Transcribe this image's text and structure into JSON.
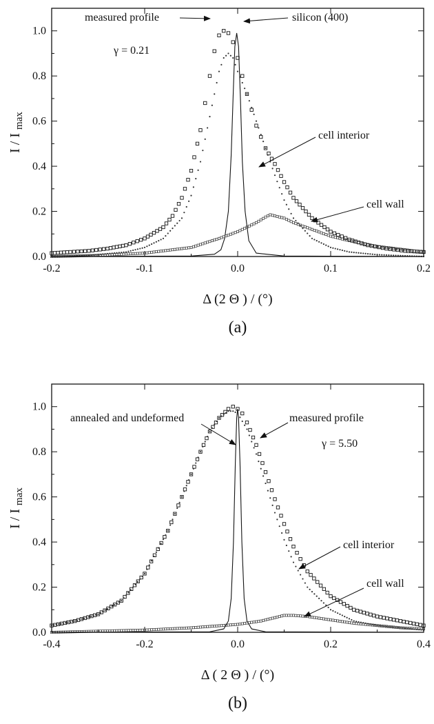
{
  "chart_data": [
    {
      "panel": "(a)",
      "type": "line",
      "xlabel": "Δ (2 Θ )  / (°)",
      "ylabel": "I / I max",
      "xlim": [
        -0.2,
        0.2
      ],
      "ylim": [
        0,
        1.1
      ],
      "xticks": [
        -0.2,
        -0.1,
        0.0,
        0.1,
        0.2
      ],
      "xtick_labels": [
        "-0.2",
        "-0.1",
        "0.0",
        "0.1",
        "0.2"
      ],
      "yticks": [
        0.0,
        0.2,
        0.4,
        0.6,
        0.8,
        1.0
      ],
      "ytick_labels": [
        "0.0",
        "0.2",
        "0.4",
        "0.6",
        "0.8",
        "1.0"
      ],
      "annotations": [
        {
          "text": "measured profile",
          "points_to": [
            -0.013,
            0.99
          ]
        },
        {
          "text": "silicon (400)",
          "points_to": [
            -0.003,
            0.98
          ]
        },
        {
          "text": "γ = 0.21"
        },
        {
          "text": "cell interior",
          "points_to": [
            0.015,
            0.52
          ]
        },
        {
          "text": "cell wall",
          "points_to": [
            0.06,
            0.15
          ]
        }
      ],
      "series": [
        {
          "style": "solid-line",
          "x": [
            -0.2,
            -0.05,
            -0.025,
            -0.018,
            -0.014,
            -0.01,
            -0.007,
            -0.005,
            -0.003,
            -0.001,
            0.001,
            0.003,
            0.005,
            0.008,
            0.012,
            0.02,
            0.05,
            0.2
          ],
          "y": [
            0.0,
            0.002,
            0.01,
            0.03,
            0.08,
            0.2,
            0.45,
            0.7,
            0.93,
            0.99,
            0.93,
            0.7,
            0.42,
            0.2,
            0.07,
            0.015,
            0.002,
            0.0
          ]
        },
        {
          "style": "open-squares",
          "x": [
            -0.2,
            -0.18,
            -0.16,
            -0.14,
            -0.12,
            -0.1,
            -0.08,
            -0.07,
            -0.06,
            -0.05,
            -0.04,
            -0.035,
            -0.03,
            -0.025,
            -0.02,
            -0.015,
            -0.01,
            -0.005,
            0.0,
            0.005,
            0.01,
            0.015,
            0.02,
            0.025,
            0.03,
            0.04,
            0.05,
            0.06,
            0.08,
            0.1,
            0.12,
            0.14,
            0.16,
            0.18,
            0.2
          ],
          "y": [
            0.015,
            0.02,
            0.025,
            0.035,
            0.05,
            0.08,
            0.13,
            0.18,
            0.26,
            0.38,
            0.56,
            0.68,
            0.8,
            0.91,
            0.98,
            1.0,
            0.99,
            0.95,
            0.88,
            0.8,
            0.72,
            0.65,
            0.58,
            0.53,
            0.48,
            0.41,
            0.33,
            0.26,
            0.17,
            0.11,
            0.075,
            0.05,
            0.035,
            0.025,
            0.02
          ]
        },
        {
          "style": "dotted",
          "x": [
            -0.2,
            -0.16,
            -0.12,
            -0.1,
            -0.08,
            -0.06,
            -0.05,
            -0.04,
            -0.03,
            -0.025,
            -0.02,
            -0.015,
            -0.01,
            -0.005,
            0.0,
            0.01,
            0.02,
            0.03,
            0.04,
            0.05,
            0.06,
            0.08,
            0.1,
            0.12,
            0.15,
            0.2
          ],
          "y": [
            0.0,
            0.005,
            0.02,
            0.04,
            0.08,
            0.17,
            0.27,
            0.42,
            0.62,
            0.72,
            0.82,
            0.88,
            0.9,
            0.88,
            0.82,
            0.72,
            0.6,
            0.48,
            0.36,
            0.25,
            0.17,
            0.08,
            0.04,
            0.02,
            0.008,
            0.0
          ]
        },
        {
          "style": "dotted-squares",
          "x": [
            -0.2,
            -0.15,
            -0.1,
            -0.05,
            -0.02,
            0.0,
            0.02,
            0.03,
            0.035,
            0.04,
            0.05,
            0.06,
            0.08,
            0.1,
            0.12,
            0.15,
            0.2
          ],
          "y": [
            0.0,
            0.005,
            0.015,
            0.04,
            0.08,
            0.11,
            0.15,
            0.175,
            0.185,
            0.18,
            0.17,
            0.15,
            0.12,
            0.09,
            0.07,
            0.045,
            0.02
          ]
        }
      ]
    },
    {
      "panel": "(b)",
      "type": "line",
      "xlabel": "Δ ( 2 Θ )  / (°)",
      "ylabel": "I / I max",
      "xlim": [
        -0.4,
        0.4
      ],
      "ylim": [
        0,
        1.1
      ],
      "xticks": [
        -0.4,
        -0.2,
        0.0,
        0.2,
        0.4
      ],
      "xtick_labels": [
        "-0.4",
        "-0.2",
        "0.0",
        "0.2",
        "0.4"
      ],
      "yticks": [
        0.0,
        0.2,
        0.4,
        0.6,
        0.8,
        1.0
      ],
      "ytick_labels": [
        "0.0",
        "0.2",
        "0.4",
        "0.6",
        "0.8",
        "1.0"
      ],
      "annotations": [
        {
          "text": "annealed and undeformed",
          "points_to": [
            -0.003,
            0.9
          ]
        },
        {
          "text": "measured profile",
          "points_to": [
            0.025,
            0.85
          ]
        },
        {
          "text": "γ = 5.50"
        },
        {
          "text": "cell interior",
          "points_to": [
            0.12,
            0.28
          ]
        },
        {
          "text": "cell wall",
          "points_to": [
            0.13,
            0.07
          ]
        }
      ],
      "series": [
        {
          "style": "solid-line",
          "x": [
            -0.4,
            -0.06,
            -0.03,
            -0.02,
            -0.014,
            -0.009,
            -0.005,
            -0.002,
            0.0,
            0.002,
            0.005,
            0.009,
            0.014,
            0.02,
            0.03,
            0.06,
            0.4
          ],
          "y": [
            0.0,
            0.002,
            0.015,
            0.05,
            0.15,
            0.4,
            0.75,
            0.95,
            0.99,
            0.95,
            0.75,
            0.4,
            0.15,
            0.05,
            0.015,
            0.002,
            0.0
          ]
        },
        {
          "style": "open-squares",
          "x": [
            -0.4,
            -0.35,
            -0.3,
            -0.25,
            -0.2,
            -0.15,
            -0.12,
            -0.1,
            -0.08,
            -0.06,
            -0.04,
            -0.02,
            -0.01,
            0.0,
            0.01,
            0.02,
            0.04,
            0.06,
            0.08,
            0.1,
            0.12,
            0.15,
            0.2,
            0.25,
            0.3,
            0.35,
            0.4
          ],
          "y": [
            0.03,
            0.05,
            0.08,
            0.14,
            0.26,
            0.45,
            0.6,
            0.7,
            0.8,
            0.89,
            0.95,
            0.99,
            1.0,
            0.99,
            0.97,
            0.93,
            0.83,
            0.71,
            0.59,
            0.48,
            0.38,
            0.27,
            0.16,
            0.1,
            0.07,
            0.05,
            0.03
          ]
        },
        {
          "style": "dotted",
          "x": [
            -0.4,
            -0.35,
            -0.3,
            -0.25,
            -0.2,
            -0.15,
            -0.12,
            -0.1,
            -0.08,
            -0.06,
            -0.04,
            -0.02,
            -0.01,
            0.0,
            0.02,
            0.04,
            0.06,
            0.08,
            0.1,
            0.12,
            0.15,
            0.2,
            0.25,
            0.3,
            0.4
          ],
          "y": [
            0.03,
            0.05,
            0.08,
            0.14,
            0.26,
            0.45,
            0.6,
            0.7,
            0.8,
            0.89,
            0.95,
            0.98,
            0.98,
            0.97,
            0.9,
            0.79,
            0.66,
            0.53,
            0.41,
            0.31,
            0.2,
            0.1,
            0.05,
            0.03,
            0.01
          ]
        },
        {
          "style": "dotted-squares",
          "x": [
            -0.4,
            -0.3,
            -0.2,
            -0.1,
            0.0,
            0.05,
            0.08,
            0.1,
            0.12,
            0.15,
            0.2,
            0.25,
            0.3,
            0.35,
            0.4
          ],
          "y": [
            0.0,
            0.005,
            0.01,
            0.02,
            0.035,
            0.05,
            0.065,
            0.075,
            0.075,
            0.07,
            0.055,
            0.04,
            0.03,
            0.02,
            0.015
          ]
        }
      ]
    }
  ]
}
